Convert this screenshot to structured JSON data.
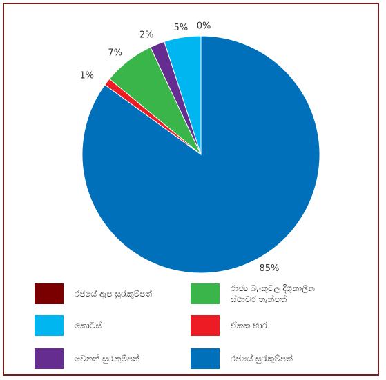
{
  "chart_data": {
    "type": "pie",
    "slices": [
      {
        "name": "රජයේ සුරැකුම්පත්",
        "value": 85,
        "label": "85%",
        "color": "#0070ba"
      },
      {
        "name": "ඒකක භාර",
        "value": 1,
        "label": "1%",
        "color": "#ed1c24"
      },
      {
        "name": "රාජ්‍ය බැංකුවල දිගුකාලීන ස්ථාවර තැන්පත්",
        "value": 7,
        "label": "7%",
        "color": "#39b54a"
      },
      {
        "name": "වෙනත් සුරැකුම්පත්",
        "value": 2,
        "label": "2%",
        "color": "#662d91"
      },
      {
        "name": "කොටස්",
        "value": 5,
        "label": "5%",
        "color": "#00b6f0"
      },
      {
        "name": "රජයේ ඇප සුරැකුම්පත්",
        "value": 0,
        "label": "0%",
        "color": "#7a0000"
      }
    ],
    "legend": [
      {
        "label": "රජයේ ඇප සුරැකුම්පත්",
        "color": "#7a0000"
      },
      {
        "label": "රාජ්‍ය බැංකුවල දිගුකාලීන ස්ථාවර තැන්පත්",
        "color": "#39b54a"
      },
      {
        "label": "කොටස්",
        "color": "#00b6f0"
      },
      {
        "label": "ඒකක භාර",
        "color": "#ed1c24"
      },
      {
        "label": "වෙනත් සුරැකුම්පත්",
        "color": "#662d91"
      },
      {
        "label": "රජයේ සුරැකුම්පත්",
        "color": "#0070ba"
      }
    ],
    "legend_position": "bottom"
  }
}
